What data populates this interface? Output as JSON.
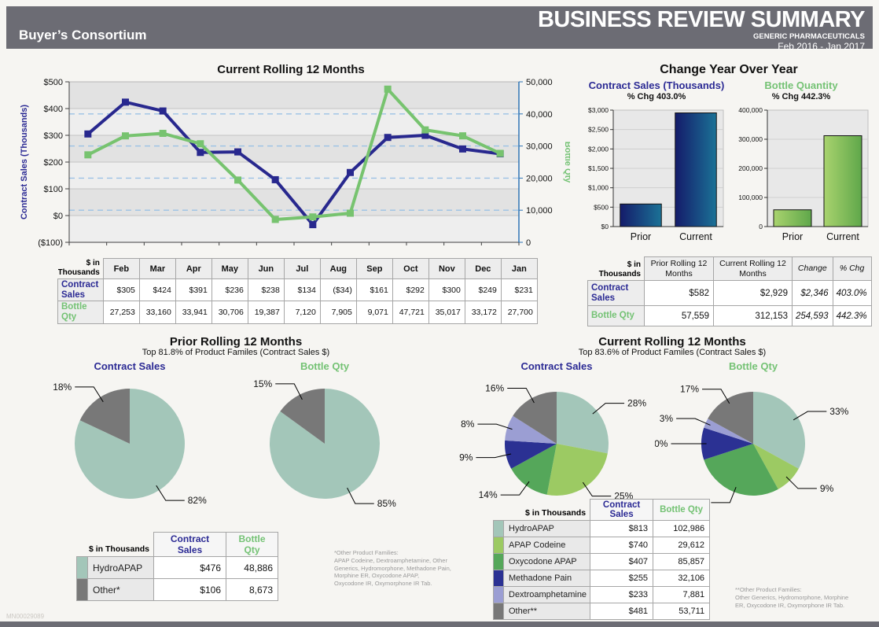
{
  "header": {
    "client": "Buyer’s Consortium",
    "title": "BUSINESS REVIEW SUMMARY",
    "subtitle": "GENERIC PHARMACEUTICALS",
    "period": "Feb 2016 - Jan 2017"
  },
  "doc_id": "MN00029089",
  "yoy_title": "Change Year Over Year",
  "colors": {
    "header_gray": "#6c6c74",
    "navy_text": "#2b2a94",
    "green_text": "#74c274",
    "line_navy": "#28288e",
    "line_green": "#77c36f",
    "teal": "#a3c6b9",
    "light_green": "#9cca63",
    "mid_green": "#55a75a",
    "pie_navy": "#2b3193",
    "purple": "#9b9ed3",
    "slice_gray": "#787878",
    "right_axis_blue": "#2e74b5",
    "dashed_grid_blue": "#9cc2e5"
  },
  "chart_data": [
    {
      "id": "rolling12",
      "type": "line",
      "title": "Current Rolling 12 Months",
      "categories": [
        "Feb",
        "Mar",
        "Apr",
        "May",
        "Jun",
        "Jul",
        "Aug",
        "Sep",
        "Oct",
        "Nov",
        "Dec",
        "Jan"
      ],
      "left_axis": {
        "label": "Contract Sales (Thousands)",
        "min": -100,
        "max": 500,
        "step": 100,
        "tick_labels": [
          "$500",
          "$400",
          "$300",
          "$200",
          "$100",
          "$0",
          "($100)"
        ]
      },
      "right_axis": {
        "label": "Bottle Qty",
        "min": 0,
        "max": 50000,
        "step": 10000,
        "tick_labels": [
          "50,000",
          "40,000",
          "30,000",
          "20,000",
          "10,000",
          "0"
        ]
      },
      "series": [
        {
          "name": "Contract Sales",
          "axis": "left",
          "color": "#28288e",
          "values": [
            305,
            424,
            391,
            236,
            238,
            134,
            -34,
            161,
            292,
            300,
            249,
            231
          ]
        },
        {
          "name": "Bottle Qty",
          "axis": "right",
          "color": "#77c36f",
          "values": [
            27253,
            33160,
            33941,
            30706,
            19387,
            7120,
            7905,
            9071,
            47721,
            35017,
            33172,
            27700
          ]
        }
      ]
    },
    {
      "id": "yoy_sales",
      "type": "bar",
      "title": "Contract Sales (Thousands)",
      "subtitle": "% Chg 403.0%",
      "categories": [
        "Prior",
        "Current"
      ],
      "values": [
        582,
        2929
      ],
      "ylim": [
        0,
        3000
      ],
      "step": 500,
      "tick_labels": [
        "$3,000",
        "$2,500",
        "$2,000",
        "$1,500",
        "$1,000",
        "$500",
        "$0"
      ],
      "bar_gradient": [
        "#141b6a",
        "#1b7296"
      ]
    },
    {
      "id": "yoy_qty",
      "type": "bar",
      "title": "Bottle Quantity",
      "subtitle": "% Chg 442.3%",
      "categories": [
        "Prior",
        "Current"
      ],
      "values": [
        57559,
        312153
      ],
      "ylim": [
        0,
        400000
      ],
      "step": 100000,
      "tick_labels": [
        "400,000",
        "300,000",
        "200,000",
        "100,000",
        "0"
      ],
      "bar_gradient": [
        "#a9d36e",
        "#5fa74a"
      ]
    },
    {
      "id": "prior_sales_pie",
      "type": "pie",
      "title": "Contract Sales",
      "title_color": "#2b2a94",
      "r": 70,
      "slices": [
        {
          "name": "HydroAPAP",
          "pct": 82,
          "display": "82%",
          "color": "#a3c6b9"
        },
        {
          "name": "Other*",
          "pct": 18,
          "display": "18%",
          "color": "#787878"
        }
      ]
    },
    {
      "id": "prior_qty_pie",
      "type": "pie",
      "title": "Bottle Qty",
      "title_color": "#74c274",
      "r": 70,
      "slices": [
        {
          "name": "HydroAPAP",
          "pct": 85,
          "display": "85%",
          "color": "#a3c6b9"
        },
        {
          "name": "Other*",
          "pct": 15,
          "display": "15%",
          "color": "#787878"
        }
      ]
    },
    {
      "id": "current_sales_pie",
      "type": "pie",
      "title": "Contract Sales",
      "title_color": "#2b2a94",
      "r": 66,
      "slices": [
        {
          "name": "HydroAPAP",
          "pct": 28,
          "display": "28%",
          "color": "#a3c6b9"
        },
        {
          "name": "APAP Codeine",
          "pct": 25,
          "display": "25%",
          "color": "#9cca63"
        },
        {
          "name": "Oxycodone APAP",
          "pct": 14,
          "display": "14%",
          "color": "#55a75a"
        },
        {
          "name": "Methadone Pain",
          "pct": 9,
          "display": "9%",
          "color": "#2b3193"
        },
        {
          "name": "Dextroamphetamine",
          "pct": 8,
          "display": "8%",
          "color": "#9b9ed3"
        },
        {
          "name": "Other**",
          "pct": 16,
          "display": "16%",
          "color": "#787878"
        }
      ]
    },
    {
      "id": "current_qty_pie",
      "type": "pie",
      "title": "Bottle Qty",
      "title_color": "#74c274",
      "r": 66,
      "slices": [
        {
          "name": "HydroAPAP",
          "pct": 33,
          "display": "33%",
          "color": "#a3c6b9"
        },
        {
          "name": "APAP Codeine",
          "pct": 9,
          "display": "9%",
          "color": "#9cca63"
        },
        {
          "name": "Oxycodone APAP",
          "pct": 28,
          "display": "28%",
          "color": "#55a75a"
        },
        {
          "name": "Methadone Pain",
          "pct": 10,
          "display": "10%",
          "color": "#2b3193"
        },
        {
          "name": "Dextroamphetamine",
          "pct": 3,
          "display": "3%",
          "color": "#9b9ed3"
        },
        {
          "name": "Other**",
          "pct": 17,
          "display": "17%",
          "color": "#787878"
        }
      ]
    }
  ],
  "months_table": {
    "corner": "$ in\nThousands",
    "rows": [
      {
        "label": "Contract Sales",
        "color": "navy",
        "values": [
          "$305",
          "$424",
          "$391",
          "$236",
          "$238",
          "$134",
          "($34)",
          "$161",
          "$292",
          "$300",
          "$249",
          "$231"
        ]
      },
      {
        "label": "Bottle Qty",
        "color": "green",
        "values": [
          "27,253",
          "33,160",
          "33,941",
          "30,706",
          "19,387",
          "7,120",
          "7,905",
          "9,071",
          "47,721",
          "35,017",
          "33,172",
          "27,700"
        ]
      }
    ]
  },
  "yoy_table": {
    "corner": "$ in\nThousands",
    "headers": [
      "Prior Rolling 12 Months",
      "Current Rolling 12 Months",
      "Change",
      "% Chg"
    ],
    "rows": [
      {
        "label": "Contract Sales",
        "color": "navy",
        "values": [
          "$582",
          "$2,929",
          "$2,346",
          "403.0%"
        ]
      },
      {
        "label": "Bottle Qty",
        "color": "green",
        "values": [
          "57,559",
          "312,153",
          "254,593",
          "442.3%"
        ]
      }
    ]
  },
  "prior": {
    "title": "Prior Rolling 12 Months",
    "subtitle": "Top 81.8% of Product Familes (Contract Sales $)",
    "table": {
      "corner": "$ in Thousands",
      "headers": [
        "Contract Sales",
        "Bottle Qty"
      ],
      "rows": [
        {
          "name": "HydroAPAP",
          "swatch": "#a3c6b9",
          "values": [
            "$476",
            "48,886"
          ]
        },
        {
          "name": "Other*",
          "swatch": "#787878",
          "values": [
            "$106",
            "8,673"
          ]
        }
      ]
    },
    "footnote": "*Other Product Families:\nAPAP Codeine, Dextroamphetamine, Other\nGenerics, Hydromorphone, Methadone Pain,\nMorphine ER, Oxycodone APAP,\nOxycodone IR, Oxymorphone IR Tab."
  },
  "current": {
    "title": "Current Rolling 12 Months",
    "subtitle": "Top 83.6% of Product Familes (Contract Sales $)",
    "table": {
      "corner": "$ in Thousands",
      "headers": [
        "Contract Sales",
        "Bottle Qty"
      ],
      "rows": [
        {
          "name": "HydroAPAP",
          "swatch": "#a3c6b9",
          "values": [
            "$813",
            "102,986"
          ]
        },
        {
          "name": "APAP Codeine",
          "swatch": "#9cca63",
          "values": [
            "$740",
            "29,612"
          ]
        },
        {
          "name": "Oxycodone APAP",
          "swatch": "#55a75a",
          "values": [
            "$407",
            "85,857"
          ]
        },
        {
          "name": "Methadone Pain",
          "swatch": "#2b3193",
          "values": [
            "$255",
            "32,106"
          ]
        },
        {
          "name": "Dextroamphetamine",
          "swatch": "#9b9ed3",
          "values": [
            "$233",
            "7,881"
          ]
        },
        {
          "name": "Other**",
          "swatch": "#787878",
          "values": [
            "$481",
            "53,711"
          ]
        }
      ]
    },
    "footnote": "**Other Product Families:\nOther Generics, Hydromorphone, Morphine\nER, Oxycodone IR, Oxymorphone IR Tab."
  }
}
